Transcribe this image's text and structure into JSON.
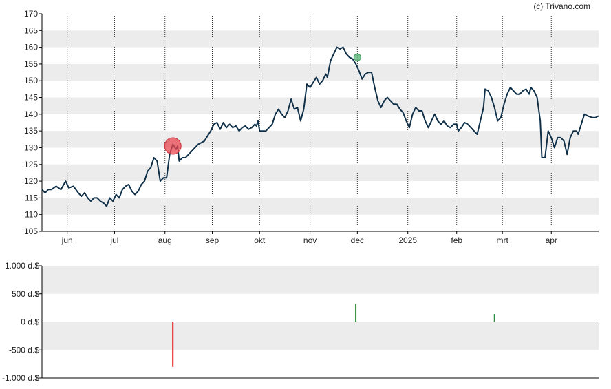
{
  "credit": "(c) Trivano.com",
  "colors": {
    "price_line": "#0f3048",
    "band": "#ececec",
    "sell_marker": "#e8474f",
    "buy_marker": "#5fb37a",
    "sell_bar": "#e01b1b",
    "buy_bar": "#2f8f3c",
    "axis": "#000000"
  },
  "chart_data": [
    {
      "type": "line",
      "title": "",
      "ylim": [
        105,
        170
      ],
      "y_ticks": [
        105,
        110,
        115,
        120,
        125,
        130,
        135,
        140,
        145,
        150,
        155,
        160,
        165,
        170
      ],
      "x_ticks": [
        {
          "label": "jun",
          "x": 16
        },
        {
          "label": "jul",
          "x": 46
        },
        {
          "label": "aug",
          "x": 78
        },
        {
          "label": "sep",
          "x": 108
        },
        {
          "label": "okt",
          "x": 138
        },
        {
          "label": "nov",
          "x": 170
        },
        {
          "label": "dec",
          "x": 200
        },
        {
          "label": "2025",
          "x": 232
        },
        {
          "label": "feb",
          "x": 263
        },
        {
          "label": "mrt",
          "x": 292
        },
        {
          "label": "apr",
          "x": 323
        }
      ],
      "grid": "vertical-dotted",
      "x_range": [
        0,
        353
      ],
      "series": [
        {
          "points": [
            [
              0,
              117.5
            ],
            [
              2,
              116.5
            ],
            [
              4,
              117.5
            ],
            [
              6,
              117.5
            ],
            [
              9,
              118.5
            ],
            [
              12,
              117.5
            ],
            [
              15,
              120
            ],
            [
              17,
              118
            ],
            [
              20,
              118.5
            ],
            [
              23,
              116.5
            ],
            [
              25,
              115.5
            ],
            [
              27,
              116.5
            ],
            [
              29,
              115
            ],
            [
              31,
              114
            ],
            [
              33,
              115
            ],
            [
              35,
              115
            ],
            [
              37,
              114
            ],
            [
              39,
              113.5
            ],
            [
              41,
              112.5
            ],
            [
              43,
              115
            ],
            [
              45,
              114
            ],
            [
              47,
              116
            ],
            [
              49,
              115
            ],
            [
              51,
              117.5
            ],
            [
              53,
              118.5
            ],
            [
              55,
              119
            ],
            [
              57,
              117
            ],
            [
              59,
              116
            ],
            [
              61,
              117
            ],
            [
              63,
              119
            ],
            [
              65,
              120
            ],
            [
              67,
              123
            ],
            [
              69,
              124
            ],
            [
              71,
              127
            ],
            [
              73,
              126
            ],
            [
              75,
              120
            ],
            [
              77,
              121
            ],
            [
              79,
              121
            ],
            [
              81,
              128
            ],
            [
              83,
              131
            ],
            [
              85,
              129.5
            ],
            [
              86,
              130.5
            ],
            [
              87,
              126
            ],
            [
              89,
              127
            ],
            [
              91,
              127
            ],
            [
              93,
              128
            ],
            [
              95,
              129
            ],
            [
              97,
              130
            ],
            [
              99,
              131
            ],
            [
              101,
              131.5
            ],
            [
              103,
              132
            ],
            [
              105,
              133.5
            ],
            [
              107,
              135
            ],
            [
              109,
              137
            ],
            [
              111,
              137.5
            ],
            [
              113,
              135.5
            ],
            [
              115,
              137.5
            ],
            [
              117,
              136
            ],
            [
              119,
              137
            ],
            [
              121,
              136
            ],
            [
              123,
              136.5
            ],
            [
              125,
              135
            ],
            [
              127,
              136
            ],
            [
              129,
              136.5
            ],
            [
              131,
              135.5
            ],
            [
              133,
              136
            ],
            [
              135,
              137
            ],
            [
              136,
              136.5
            ],
            [
              137,
              138
            ],
            [
              138,
              135
            ],
            [
              140,
              135
            ],
            [
              142,
              135
            ],
            [
              144,
              136
            ],
            [
              146,
              137
            ],
            [
              148,
              140
            ],
            [
              150,
              141.5
            ],
            [
              152,
              140
            ],
            [
              154,
              139
            ],
            [
              156,
              141
            ],
            [
              158,
              144.5
            ],
            [
              160,
              141.5
            ],
            [
              162,
              142
            ],
            [
              164,
              138
            ],
            [
              166,
              141.5
            ],
            [
              168,
              149
            ],
            [
              170,
              148
            ],
            [
              172,
              149.5
            ],
            [
              174,
              151
            ],
            [
              176,
              149
            ],
            [
              178,
              150
            ],
            [
              180,
              152
            ],
            [
              181,
              151
            ],
            [
              183,
              156
            ],
            [
              185,
              158
            ],
            [
              187,
              160
            ],
            [
              189,
              159.5
            ],
            [
              191,
              160
            ],
            [
              193,
              158
            ],
            [
              195,
              157
            ],
            [
              197,
              156.5
            ],
            [
              199,
              155
            ],
            [
              201,
              153
            ],
            [
              203,
              150.5
            ],
            [
              205,
              152
            ],
            [
              207,
              152.5
            ],
            [
              209,
              152.5
            ],
            [
              211,
              148
            ],
            [
              213,
              144
            ],
            [
              215,
              142
            ],
            [
              217,
              144
            ],
            [
              219,
              145
            ],
            [
              221,
              144
            ],
            [
              223,
              143
            ],
            [
              225,
              143
            ],
            [
              227,
              141.5
            ],
            [
              229,
              140.5
            ],
            [
              231,
              138
            ],
            [
              233,
              136
            ],
            [
              235,
              140
            ],
            [
              237,
              142
            ],
            [
              239,
              141
            ],
            [
              241,
              141
            ],
            [
              243,
              138
            ],
            [
              245,
              136
            ],
            [
              247,
              138
            ],
            [
              249,
              140
            ],
            [
              251,
              138
            ],
            [
              253,
              137
            ],
            [
              255,
              138
            ],
            [
              257,
              136.5
            ],
            [
              259,
              136
            ],
            [
              261,
              137
            ],
            [
              263,
              137
            ],
            [
              264,
              135
            ],
            [
              266,
              136
            ],
            [
              268,
              137.5
            ],
            [
              270,
              137
            ],
            [
              272,
              136
            ],
            [
              274,
              135
            ],
            [
              276,
              134
            ],
            [
              278,
              138
            ],
            [
              280,
              142
            ],
            [
              281,
              147.5
            ],
            [
              283,
              147
            ],
            [
              285,
              145
            ],
            [
              287,
              142
            ],
            [
              289,
              138
            ],
            [
              291,
              139
            ],
            [
              293,
              143
            ],
            [
              295,
              146
            ],
            [
              297,
              148
            ],
            [
              299,
              147
            ],
            [
              301,
              146
            ],
            [
              303,
              146
            ],
            [
              305,
              147
            ],
            [
              307,
              147.5
            ],
            [
              309,
              146
            ],
            [
              310,
              148
            ],
            [
              312,
              147
            ],
            [
              314,
              145
            ],
            [
              316,
              138
            ],
            [
              317,
              127
            ],
            [
              319,
              127
            ],
            [
              321,
              135
            ],
            [
              323,
              133
            ],
            [
              325,
              130
            ],
            [
              327,
              133
            ],
            [
              329,
              133
            ],
            [
              331,
              132
            ],
            [
              333,
              128
            ],
            [
              335,
              133
            ],
            [
              337,
              135
            ],
            [
              339,
              135
            ],
            [
              340,
              134
            ],
            [
              342,
              137
            ],
            [
              344,
              140
            ],
            [
              346,
              139.5
            ],
            [
              349,
              139
            ],
            [
              351,
              139
            ],
            [
              353,
              139.5
            ]
          ]
        }
      ],
      "markers": [
        {
          "type": "sell",
          "x": 83,
          "y": 130.5
        },
        {
          "type": "buy",
          "x": 200,
          "y": 157
        }
      ]
    },
    {
      "type": "bar",
      "title": "",
      "ylim": [
        -1000,
        1000
      ],
      "y_ticks": [
        {
          "value": 1000,
          "label": "1.000 d.$"
        },
        {
          "value": 500,
          "label": "500 d.$"
        },
        {
          "value": 0,
          "label": "0 d.$"
        },
        {
          "value": -500,
          "label": "-500 d.$"
        },
        {
          "value": -1000,
          "label": "-1.000 d.$"
        }
      ],
      "bars": [
        {
          "x": 83,
          "value": -800,
          "side": "sell"
        },
        {
          "x": 199,
          "value": 320,
          "side": "buy"
        },
        {
          "x": 287,
          "value": 140,
          "side": "buy"
        }
      ]
    }
  ]
}
